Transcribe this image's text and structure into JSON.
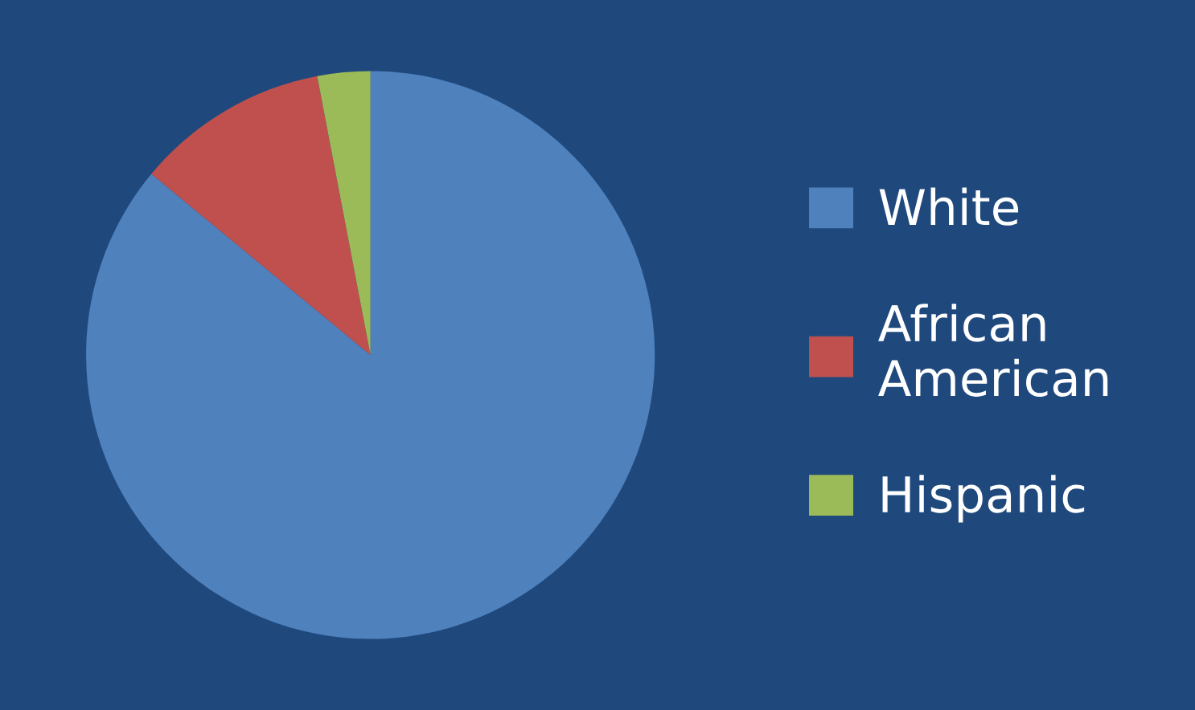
{
  "chart_data": {
    "type": "pie",
    "categories": [
      "White",
      "African American",
      "Hispanic"
    ],
    "values": [
      86,
      11,
      3
    ],
    "colors": [
      "#4f81bd",
      "#c0504d",
      "#9bbb59"
    ],
    "legend": "right"
  }
}
